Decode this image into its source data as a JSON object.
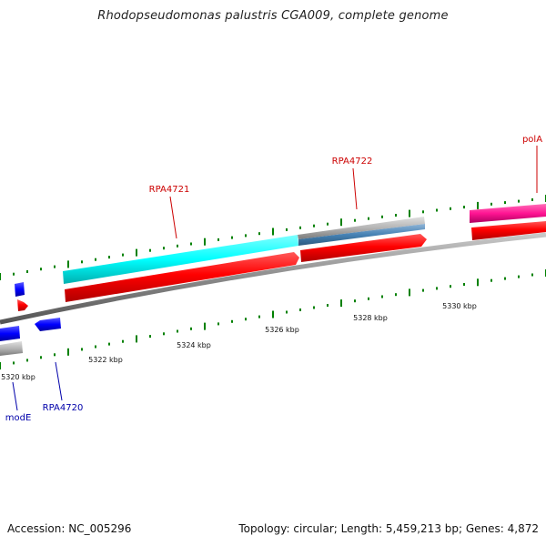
{
  "title": "Rhodopseudomonas palustris CGA009, complete genome",
  "footer": {
    "accession": "Accession: NC_005296",
    "topology": "Topology: circular; Length: 5,459,213 bp; Genes: 4,872"
  },
  "genes": {
    "polA": "polA",
    "RPA4722": "RPA4722",
    "RPA4721": "RPA4721",
    "RPA4720": "RPA4720",
    "modE": "modE"
  },
  "ticks": {
    "t5320": "5320 kbp",
    "t5322": "5322 kbp",
    "t5324": "5324 kbp",
    "t5326": "5326 kbp",
    "t5328": "5328 kbp",
    "t5330": "5330 kbp"
  },
  "colors": {
    "forward_cds": "#ff0000",
    "reverse_cds": "#0000ff",
    "forward_gene_label": "#cc0000",
    "reverse_gene_label": "#0000aa",
    "backbone": "#888888",
    "tick": "#008000",
    "cyan_feature": "#00ffff",
    "magenta_feature": "#ff1493",
    "steelblue_feature": "#4682b4",
    "gray_feature": "#b0b0b0"
  }
}
